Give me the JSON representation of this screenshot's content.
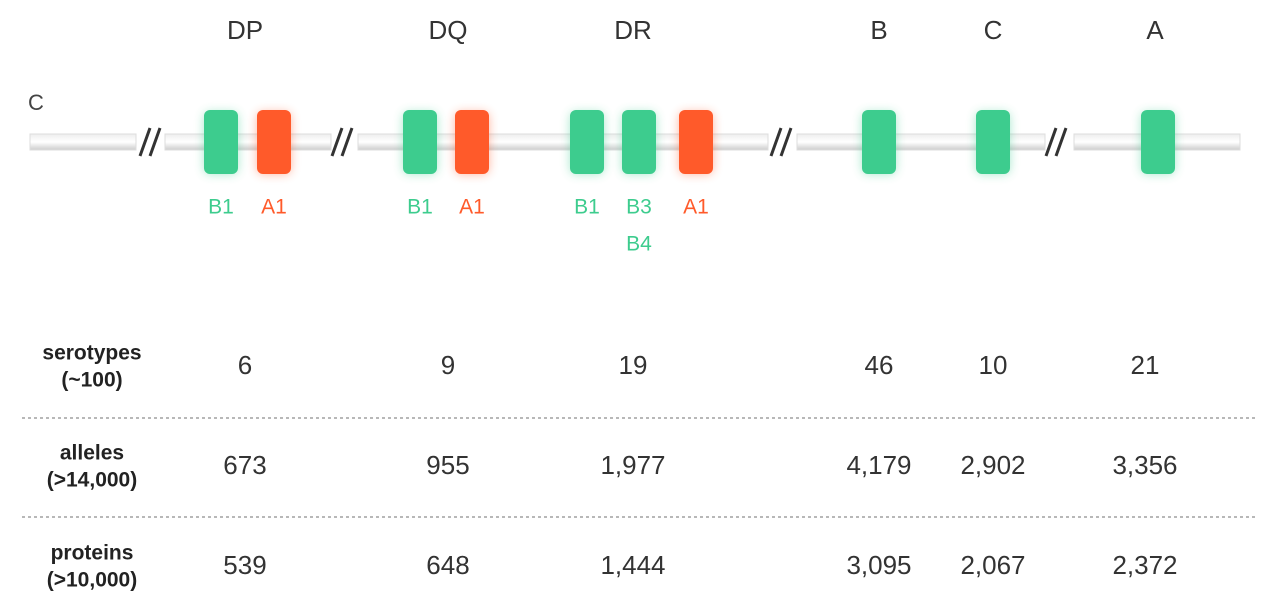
{
  "chromosome_label": "C",
  "loci": [
    {
      "name": "DP",
      "genes": [
        "B1",
        "A1"
      ],
      "genes_below": []
    },
    {
      "name": "DQ",
      "genes": [
        "B1",
        "A1"
      ],
      "genes_below": []
    },
    {
      "name": "DR",
      "genes": [
        "B1",
        "B3",
        "A1"
      ],
      "genes_below": [
        "B4"
      ]
    },
    {
      "name": "B",
      "genes": [],
      "genes_below": []
    },
    {
      "name": "C",
      "genes": [],
      "genes_below": []
    },
    {
      "name": "A",
      "genes": [],
      "genes_below": []
    }
  ],
  "table": {
    "rows": [
      {
        "label": [
          "serotypes",
          "(~100)"
        ],
        "cells": [
          "6",
          "9",
          "19",
          "46",
          "10",
          "21"
        ]
      },
      {
        "label": [
          "alleles",
          "(>14,000)"
        ],
        "cells": [
          "673",
          "955",
          "1,977",
          "4,179",
          "2,902",
          "3,356"
        ]
      },
      {
        "label": [
          "proteins",
          "(>10,000)"
        ],
        "cells": [
          "539",
          "648",
          "1,444",
          "3,095",
          "2,067",
          "2,372"
        ]
      }
    ]
  }
}
